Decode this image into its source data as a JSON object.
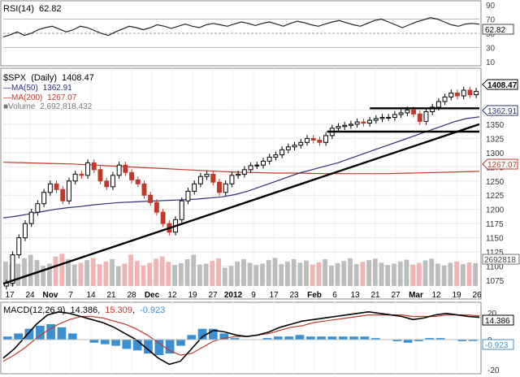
{
  "chart_data": [
    {
      "type": "line",
      "panel": "rsi",
      "label": "RSI(14)",
      "value_label": "62.82",
      "last_value": 62.82,
      "ylim": [
        10,
        90
      ],
      "ticks": [
        "90",
        "70",
        "50",
        "30",
        "10"
      ],
      "reference_lines": [
        30,
        50,
        70
      ],
      "series": [
        {
          "values": [
            45,
            48,
            52,
            47,
            50,
            55,
            58,
            60,
            56,
            52,
            55,
            60,
            58,
            54,
            50,
            47,
            52,
            56,
            60,
            58,
            55,
            58,
            62,
            60,
            57,
            60,
            63,
            60,
            58,
            62,
            64,
            62,
            60,
            63,
            66,
            64,
            61,
            64,
            66,
            63,
            60,
            64,
            67,
            65,
            62,
            60,
            63,
            66,
            68,
            65,
            62,
            60,
            64,
            68,
            70,
            66,
            62,
            58,
            62,
            66,
            69,
            72,
            70,
            66,
            62,
            60,
            63,
            64,
            62.82
          ]
        }
      ]
    },
    {
      "type": "candlestick",
      "panel": "price",
      "title_symbol": "$SPX",
      "title_period": "(Daily)",
      "title_value": "1408.47",
      "ylim": [
        1065,
        1420
      ],
      "yticks": [
        "1375",
        "1350",
        "1325",
        "1300",
        "1275",
        "1250",
        "1225",
        "1200",
        "1175",
        "1150",
        "1125",
        "1100",
        "1075"
      ],
      "xtick_labels": [
        "17",
        "24",
        "Nov",
        "7",
        "14",
        "21",
        "28",
        "Dec",
        "12",
        "19",
        "27",
        "2012",
        "9",
        "17",
        "23",
        "Feb",
        "6",
        "13",
        "21",
        "27",
        "Mar",
        "12",
        "19",
        "26"
      ],
      "legend": [
        {
          "label": "MA(50)",
          "value": "1362.91",
          "color": "#2b2f7a"
        },
        {
          "label": "MA(200)",
          "value": "1267.07",
          "color": "#c0392b"
        },
        {
          "label": "Volume",
          "value": "2,692,818,432",
          "color": "#999999"
        }
      ],
      "price_marker": "1408.47",
      "ma50_marker": "1362.91",
      "ma200_marker": "1267.07",
      "volume_marker": "2692818",
      "series": [
        {
          "name": "close",
          "values": [
            1070,
            1120,
            1150,
            1175,
            1195,
            1210,
            1230,
            1245,
            1235,
            1215,
            1250,
            1262,
            1260,
            1282,
            1270,
            1250,
            1240,
            1260,
            1278,
            1265,
            1252,
            1245,
            1225,
            1212,
            1195,
            1175,
            1160,
            1182,
            1215,
            1232,
            1245,
            1258,
            1262,
            1248,
            1230,
            1245,
            1260,
            1262,
            1270,
            1277,
            1278,
            1285,
            1292,
            1296,
            1305,
            1310,
            1313,
            1318,
            1325,
            1322,
            1318,
            1330,
            1343,
            1346,
            1348,
            1350,
            1354,
            1352,
            1357,
            1360,
            1362,
            1362,
            1367,
            1370,
            1375,
            1368,
            1355,
            1372,
            1380,
            1390,
            1398,
            1405,
            1400,
            1410,
            1402,
            1408
          ]
        },
        {
          "name": "ma50",
          "values": [
            1185,
            1188,
            1192,
            1196,
            1200,
            1203,
            1205,
            1208,
            1210,
            1212,
            1213,
            1214,
            1215,
            1216,
            1217,
            1218,
            1220,
            1222,
            1226,
            1232,
            1240,
            1248,
            1256,
            1264,
            1270,
            1276,
            1282,
            1290,
            1298,
            1306,
            1314,
            1322,
            1330,
            1338,
            1346,
            1354,
            1360,
            1363
          ]
        },
        {
          "name": "ma200",
          "values": [
            1283,
            1282,
            1281,
            1280,
            1278,
            1276,
            1274,
            1272,
            1270,
            1268,
            1266,
            1265,
            1264,
            1264,
            1263,
            1263,
            1263,
            1263,
            1264,
            1265,
            1266,
            1267
          ]
        }
      ],
      "volume": [
        55,
        48,
        50,
        62,
        70,
        58,
        45,
        50,
        66,
        72,
        60,
        48,
        52,
        58,
        63,
        49,
        55,
        60,
        44,
        50,
        70,
        56,
        46,
        52,
        61,
        66,
        54,
        47,
        51,
        60,
        70,
        48,
        50,
        56,
        62,
        41,
        45,
        55,
        60,
        52,
        47,
        50,
        58,
        63,
        49,
        55,
        60,
        52,
        57,
        48,
        53,
        60,
        46,
        51,
        56,
        62,
        49,
        54,
        58,
        61,
        52,
        47,
        50,
        55,
        59,
        48,
        52,
        57,
        61,
        50,
        46,
        52,
        55,
        49,
        53,
        51
      ],
      "trendlines": [
        {
          "from": [
            0,
            1069
          ],
          "to": [
            1,
            1350
          ]
        },
        {
          "from": [
            0.68,
            1337
          ],
          "to": [
            1,
            1337
          ]
        },
        {
          "from": [
            0.77,
            1378
          ],
          "to": [
            1,
            1378
          ]
        }
      ]
    },
    {
      "type": "line",
      "panel": "macd",
      "label": "MACD(12,26,9)",
      "macd_value": "14.386",
      "signal_value": "15.309",
      "hist_value": "-0.923",
      "ylim": [
        -20,
        20
      ],
      "ticks": [
        "20",
        "0",
        "-20"
      ],
      "markers": [
        "14.386",
        "-0.923"
      ],
      "series": [
        {
          "name": "macd",
          "color": "#000000",
          "values": [
            -12,
            -6,
            2,
            10,
            16,
            18,
            17,
            15,
            13,
            11,
            8,
            4,
            0,
            -6,
            -12,
            -16,
            -14,
            -6,
            2,
            6,
            5,
            3,
            2,
            3,
            5,
            8,
            10,
            12,
            13,
            14,
            15,
            16,
            17,
            18,
            17,
            16,
            15,
            13,
            14,
            16,
            17,
            16,
            15,
            14.4
          ]
        },
        {
          "name": "signal",
          "color": "#c0392b",
          "values": [
            -14,
            -10,
            -5,
            1,
            6,
            10,
            13,
            15,
            15,
            14,
            12,
            10,
            7,
            3,
            -2,
            -7,
            -10,
            -9,
            -5,
            -1,
            1,
            2,
            2,
            3,
            4,
            6,
            8,
            9,
            11,
            12,
            13,
            14,
            15,
            16,
            16,
            16,
            16,
            15,
            15,
            15,
            16,
            16,
            16,
            15.3
          ]
        },
        {
          "name": "histogram",
          "color": "#3b8fd1",
          "values": [
            2,
            4,
            7,
            9,
            10,
            8,
            4,
            0,
            -2,
            -3,
            -4,
            -6,
            -7,
            -9,
            -10,
            -9,
            -4,
            3,
            7,
            7,
            4,
            1,
            0,
            0,
            1,
            2,
            2,
            3,
            2,
            2,
            2,
            2,
            2,
            2,
            1,
            0,
            -1,
            -2,
            -1,
            1,
            1,
            0,
            -1,
            -0.9
          ]
        }
      ]
    }
  ]
}
